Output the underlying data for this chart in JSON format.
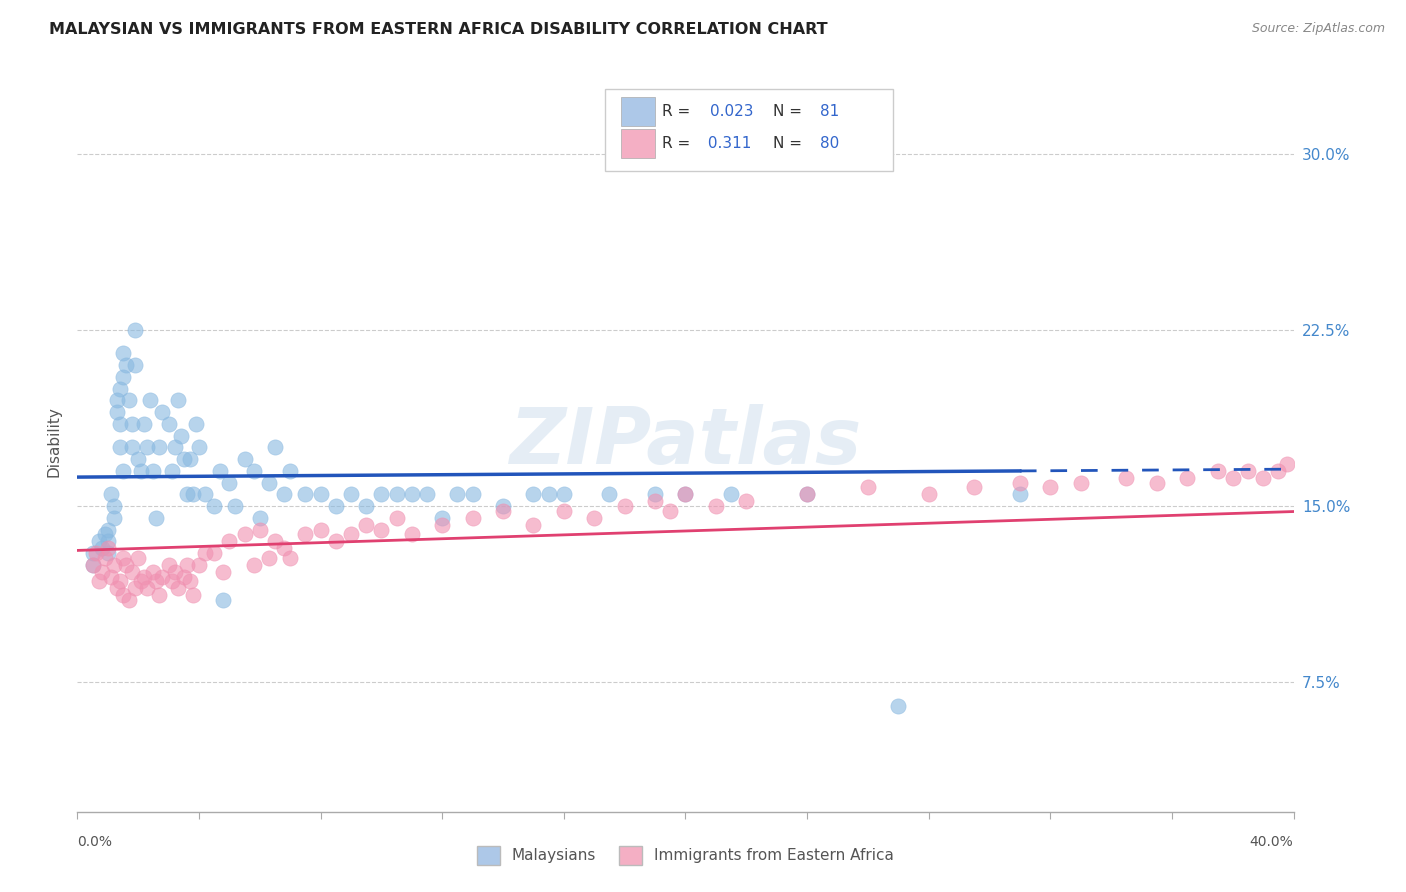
{
  "title": "MALAYSIAN VS IMMIGRANTS FROM EASTERN AFRICA DISABILITY CORRELATION CHART",
  "source": "Source: ZipAtlas.com",
  "ylabel": "Disability",
  "yticks": [
    0.075,
    0.15,
    0.225,
    0.3
  ],
  "ytick_labels": [
    "7.5%",
    "15.0%",
    "22.5%",
    "30.0%"
  ],
  "xmin": 0.0,
  "xmax": 0.4,
  "ymin": 0.02,
  "ymax": 0.335,
  "blue_color": "#adc8e8",
  "pink_color": "#f4afc4",
  "blue_line_color": "#2255bb",
  "pink_line_color": "#e04070",
  "blue_dot_color": "#88b8e0",
  "pink_dot_color": "#f090b0",
  "watermark": "ZIPatlas",
  "label1": "Malaysians",
  "label2": "Immigrants from Eastern Africa",
  "malaysians_x": [
    0.005,
    0.005,
    0.007,
    0.008,
    0.009,
    0.01,
    0.01,
    0.01,
    0.011,
    0.012,
    0.012,
    0.013,
    0.013,
    0.014,
    0.014,
    0.014,
    0.015,
    0.015,
    0.015,
    0.016,
    0.017,
    0.018,
    0.018,
    0.019,
    0.019,
    0.02,
    0.021,
    0.022,
    0.023,
    0.024,
    0.025,
    0.026,
    0.027,
    0.028,
    0.03,
    0.031,
    0.032,
    0.033,
    0.034,
    0.035,
    0.036,
    0.037,
    0.038,
    0.039,
    0.04,
    0.042,
    0.045,
    0.047,
    0.048,
    0.05,
    0.052,
    0.055,
    0.058,
    0.06,
    0.063,
    0.065,
    0.068,
    0.07,
    0.075,
    0.08,
    0.085,
    0.09,
    0.095,
    0.1,
    0.105,
    0.11,
    0.115,
    0.12,
    0.125,
    0.13,
    0.14,
    0.15,
    0.155,
    0.16,
    0.175,
    0.19,
    0.2,
    0.215,
    0.24,
    0.27,
    0.31
  ],
  "malaysians_y": [
    0.13,
    0.125,
    0.135,
    0.132,
    0.138,
    0.14,
    0.135,
    0.13,
    0.155,
    0.15,
    0.145,
    0.195,
    0.19,
    0.2,
    0.185,
    0.175,
    0.215,
    0.205,
    0.165,
    0.21,
    0.195,
    0.185,
    0.175,
    0.225,
    0.21,
    0.17,
    0.165,
    0.185,
    0.175,
    0.195,
    0.165,
    0.145,
    0.175,
    0.19,
    0.185,
    0.165,
    0.175,
    0.195,
    0.18,
    0.17,
    0.155,
    0.17,
    0.155,
    0.185,
    0.175,
    0.155,
    0.15,
    0.165,
    0.11,
    0.16,
    0.15,
    0.17,
    0.165,
    0.145,
    0.16,
    0.175,
    0.155,
    0.165,
    0.155,
    0.155,
    0.15,
    0.155,
    0.15,
    0.155,
    0.155,
    0.155,
    0.155,
    0.145,
    0.155,
    0.155,
    0.15,
    0.155,
    0.155,
    0.155,
    0.155,
    0.155,
    0.155,
    0.155,
    0.155,
    0.065,
    0.155
  ],
  "eastern_x": [
    0.005,
    0.006,
    0.007,
    0.008,
    0.009,
    0.01,
    0.011,
    0.012,
    0.013,
    0.014,
    0.015,
    0.015,
    0.016,
    0.017,
    0.018,
    0.019,
    0.02,
    0.021,
    0.022,
    0.023,
    0.025,
    0.026,
    0.027,
    0.028,
    0.03,
    0.031,
    0.032,
    0.033,
    0.035,
    0.036,
    0.037,
    0.038,
    0.04,
    0.042,
    0.045,
    0.048,
    0.05,
    0.055,
    0.058,
    0.06,
    0.063,
    0.065,
    0.068,
    0.07,
    0.075,
    0.08,
    0.085,
    0.09,
    0.095,
    0.1,
    0.105,
    0.11,
    0.12,
    0.13,
    0.14,
    0.15,
    0.16,
    0.17,
    0.18,
    0.19,
    0.195,
    0.2,
    0.21,
    0.22,
    0.24,
    0.26,
    0.28,
    0.295,
    0.31,
    0.32,
    0.33,
    0.345,
    0.355,
    0.365,
    0.375,
    0.38,
    0.385,
    0.39,
    0.395,
    0.398
  ],
  "eastern_y": [
    0.125,
    0.13,
    0.118,
    0.122,
    0.128,
    0.132,
    0.12,
    0.125,
    0.115,
    0.118,
    0.128,
    0.112,
    0.125,
    0.11,
    0.122,
    0.115,
    0.128,
    0.118,
    0.12,
    0.115,
    0.122,
    0.118,
    0.112,
    0.12,
    0.125,
    0.118,
    0.122,
    0.115,
    0.12,
    0.125,
    0.118,
    0.112,
    0.125,
    0.13,
    0.13,
    0.122,
    0.135,
    0.138,
    0.125,
    0.14,
    0.128,
    0.135,
    0.132,
    0.128,
    0.138,
    0.14,
    0.135,
    0.138,
    0.142,
    0.14,
    0.145,
    0.138,
    0.142,
    0.145,
    0.148,
    0.142,
    0.148,
    0.145,
    0.15,
    0.152,
    0.148,
    0.155,
    0.15,
    0.152,
    0.155,
    0.158,
    0.155,
    0.158,
    0.16,
    0.158,
    0.16,
    0.162,
    0.16,
    0.162,
    0.165,
    0.162,
    0.165,
    0.162,
    0.165,
    0.168
  ]
}
